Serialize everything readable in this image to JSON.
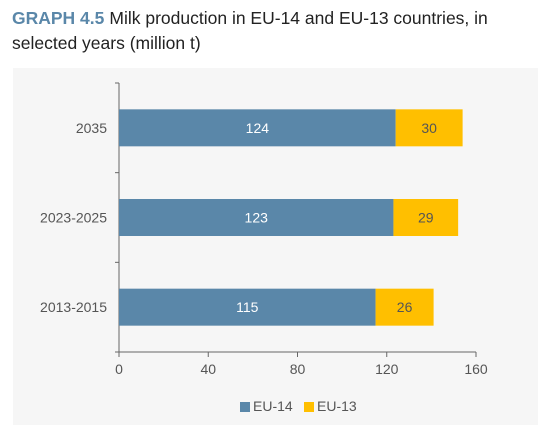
{
  "figure": {
    "label": "GRAPH 4.5",
    "title": "Milk production in EU-14 and EU-13 countries, in selected years (million t)"
  },
  "chart_data": {
    "type": "bar",
    "orientation": "horizontal",
    "stacked": true,
    "categories": [
      "2035",
      "2023-2025",
      "2013-2015"
    ],
    "series": [
      {
        "name": "EU-14",
        "values": [
          124,
          123,
          115
        ],
        "color": "#5a87a9",
        "label_color": "#ffffff"
      },
      {
        "name": "EU-13",
        "values": [
          30,
          29,
          26
        ],
        "color": "#ffbf00",
        "label_color": "#555555"
      }
    ],
    "xlim": [
      0,
      160
    ],
    "xticks": [
      0,
      40,
      80,
      120,
      160
    ],
    "grid": false,
    "legend_position": "bottom-center"
  }
}
